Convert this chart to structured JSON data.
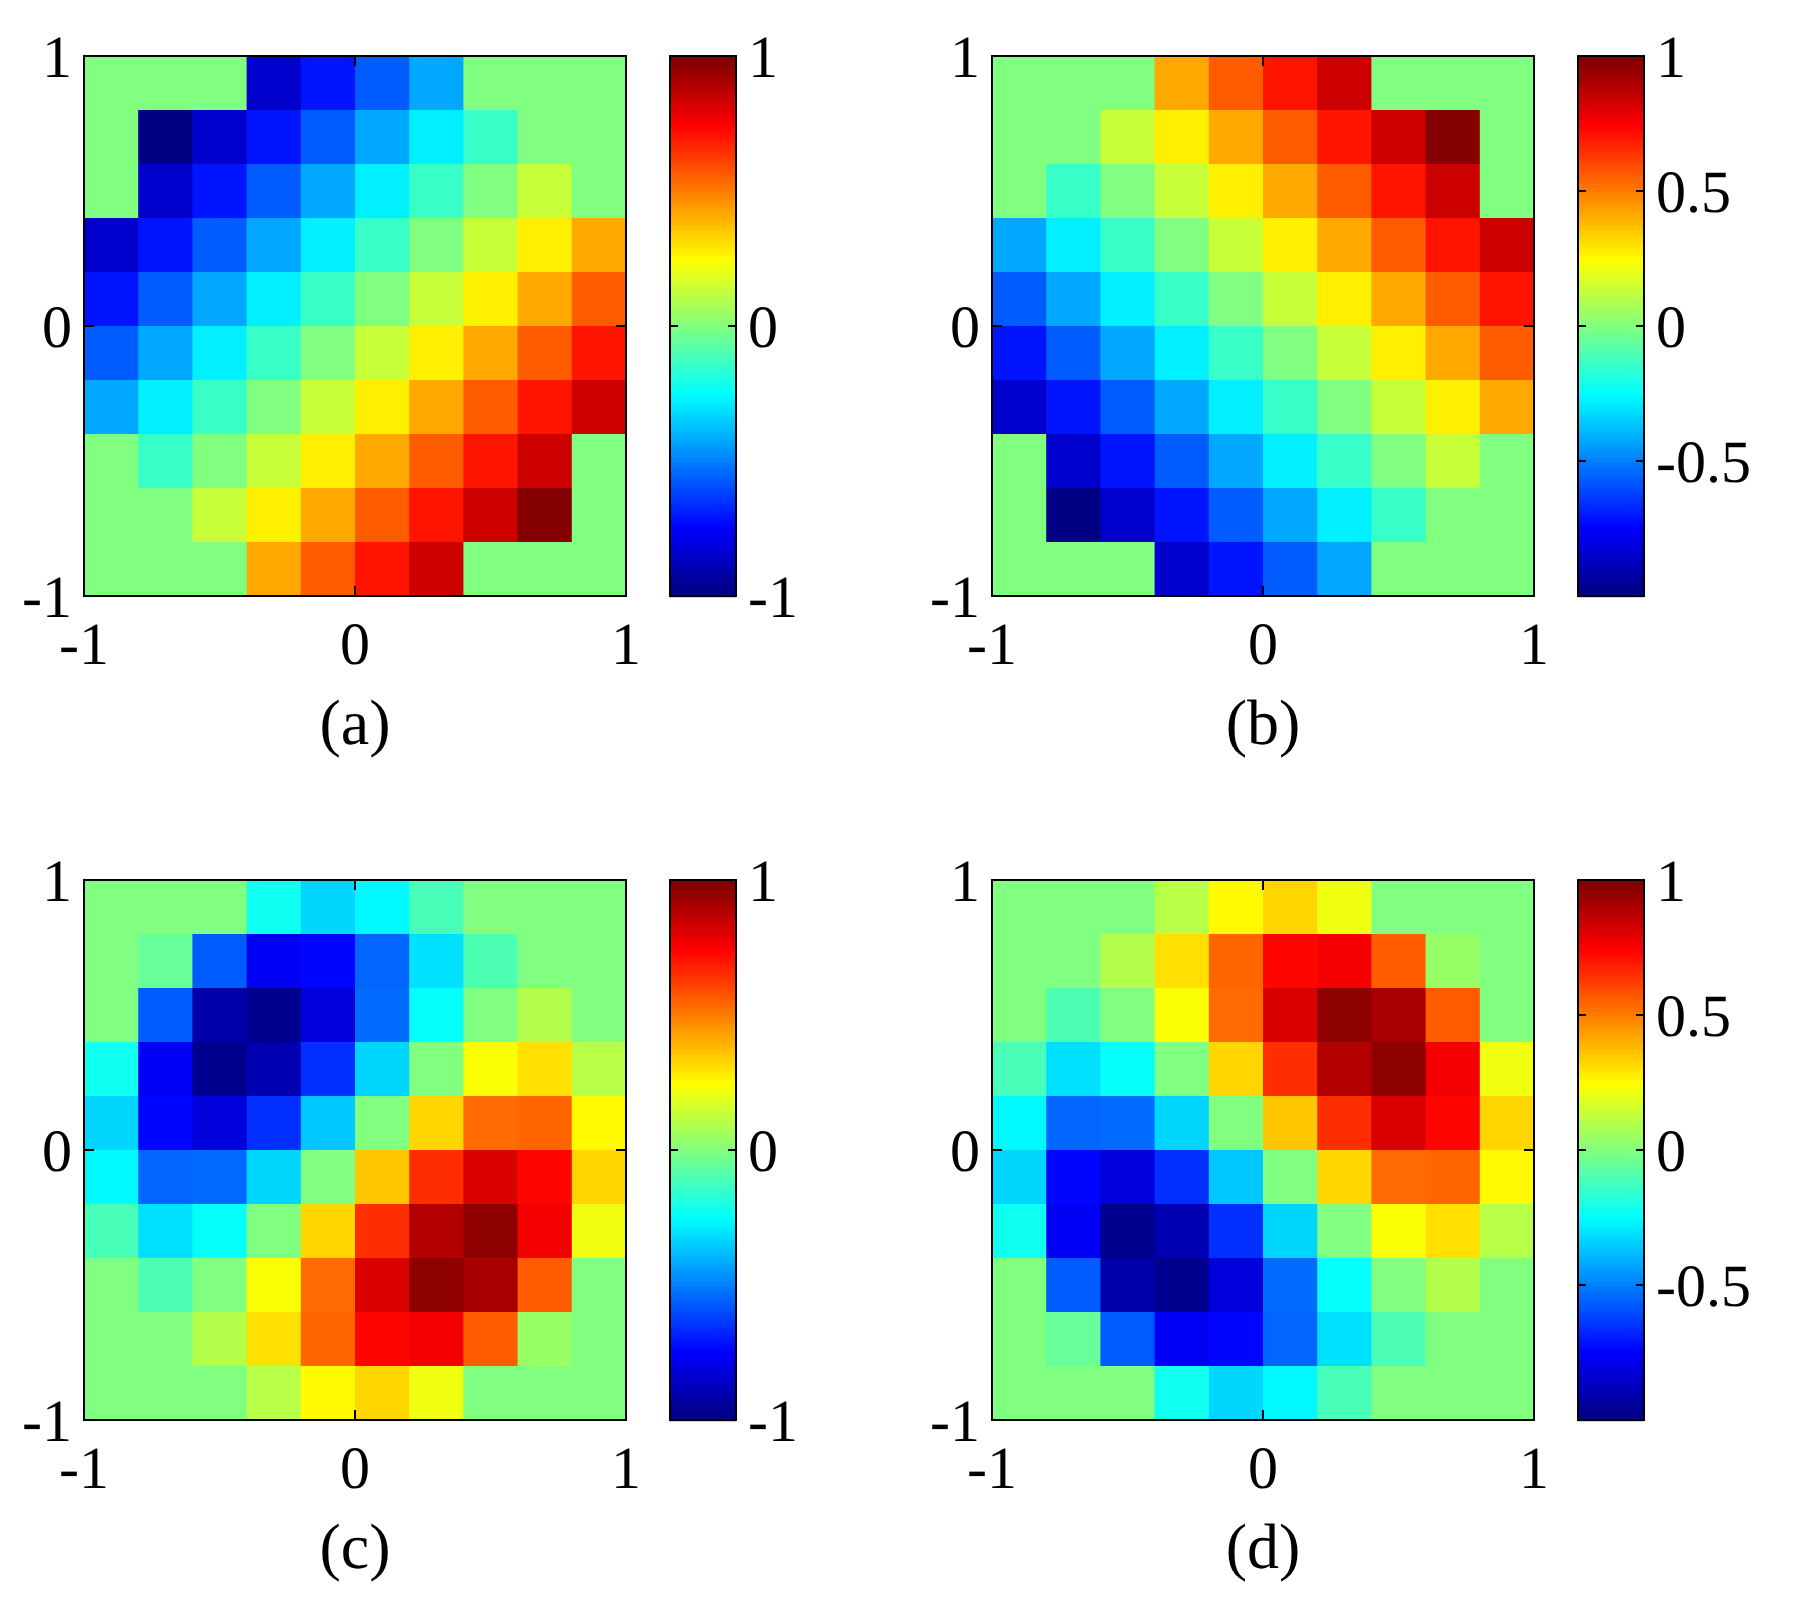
{
  "chart_data": [
    {
      "type": "heatmap",
      "xlabel": "(a)",
      "xlim": [
        -1,
        1
      ],
      "ylim": [
        -1,
        1
      ],
      "xticks": [
        -1,
        0,
        1
      ],
      "yticks": [
        -1,
        0,
        1
      ],
      "clim": [
        -1,
        1
      ],
      "cticks": [
        -1,
        0,
        1
      ],
      "cells": [
        [
          0,
          0,
          0,
          -0.85,
          -0.71,
          -0.57,
          -0.42,
          0,
          0,
          0
        ],
        [
          0,
          -0.99,
          -0.85,
          -0.71,
          -0.57,
          -0.42,
          -0.28,
          -0.14,
          0,
          0
        ],
        [
          0,
          -0.85,
          -0.71,
          -0.57,
          -0.42,
          -0.28,
          -0.14,
          0,
          0.14,
          0
        ],
        [
          -0.85,
          -0.71,
          -0.57,
          -0.42,
          -0.28,
          -0.14,
          0,
          0.14,
          0.28,
          0.42
        ],
        [
          -0.71,
          -0.57,
          -0.42,
          -0.28,
          -0.14,
          0,
          0.14,
          0.28,
          0.42,
          0.57
        ],
        [
          -0.57,
          -0.42,
          -0.28,
          -0.14,
          0,
          0.14,
          0.28,
          0.42,
          0.57,
          0.71
        ],
        [
          -0.42,
          -0.28,
          -0.14,
          0,
          0.14,
          0.28,
          0.42,
          0.57,
          0.71,
          0.85
        ],
        [
          0,
          -0.14,
          0,
          0.14,
          0.28,
          0.42,
          0.57,
          0.71,
          0.85,
          0
        ],
        [
          0,
          0,
          0.14,
          0.28,
          0.42,
          0.57,
          0.71,
          0.85,
          0.99,
          0
        ],
        [
          0,
          0,
          0,
          0.42,
          0.57,
          0.71,
          0.85,
          0,
          0,
          0
        ]
      ]
    },
    {
      "type": "heatmap",
      "xlabel": "(b)",
      "xlim": [
        -1,
        1
      ],
      "ylim": [
        -1,
        1
      ],
      "xticks": [
        -1,
        0,
        1
      ],
      "yticks": [
        -1,
        0,
        1
      ],
      "clim": [
        -1,
        1
      ],
      "cticks": [
        -0.5,
        0,
        0.5,
        1
      ],
      "cells": [
        [
          0,
          0,
          0,
          0.42,
          0.57,
          0.71,
          0.85,
          0,
          0,
          0
        ],
        [
          0,
          0,
          0.14,
          0.28,
          0.42,
          0.57,
          0.71,
          0.85,
          0.99,
          0
        ],
        [
          0,
          -0.14,
          0,
          0.14,
          0.28,
          0.42,
          0.57,
          0.71,
          0.85,
          0
        ],
        [
          -0.42,
          -0.28,
          -0.14,
          0,
          0.14,
          0.28,
          0.42,
          0.57,
          0.71,
          0.85
        ],
        [
          -0.57,
          -0.42,
          -0.28,
          -0.14,
          0,
          0.14,
          0.28,
          0.42,
          0.57,
          0.71
        ],
        [
          -0.71,
          -0.57,
          -0.42,
          -0.28,
          -0.14,
          0,
          0.14,
          0.28,
          0.42,
          0.57
        ],
        [
          -0.85,
          -0.71,
          -0.57,
          -0.42,
          -0.28,
          -0.14,
          0,
          0.14,
          0.28,
          0.42
        ],
        [
          0,
          -0.85,
          -0.71,
          -0.57,
          -0.42,
          -0.28,
          -0.14,
          0,
          0.14,
          0
        ],
        [
          0,
          -0.99,
          -0.85,
          -0.71,
          -0.57,
          -0.42,
          -0.28,
          -0.14,
          0,
          0
        ],
        [
          0,
          0,
          0,
          -0.85,
          -0.71,
          -0.57,
          -0.42,
          0,
          0,
          0
        ]
      ]
    },
    {
      "type": "heatmap",
      "xlabel": "(c)",
      "xlim": [
        -1,
        1
      ],
      "ylim": [
        -1,
        1
      ],
      "xticks": [
        -1,
        0,
        1
      ],
      "yticks": [
        -1,
        0,
        1
      ],
      "clim": [
        -1,
        1
      ],
      "cticks": [
        -1,
        0,
        1
      ],
      "cells": [
        [
          0,
          0,
          0,
          -0.22,
          -0.33,
          -0.26,
          -0.11,
          0,
          0,
          0
        ],
        [
          0,
          -0.05,
          -0.57,
          -0.77,
          -0.74,
          -0.55,
          -0.31,
          -0.1,
          0,
          0
        ],
        [
          0,
          -0.57,
          -0.92,
          -0.97,
          -0.82,
          -0.54,
          -0.24,
          0,
          0.1,
          0
        ],
        [
          -0.22,
          -0.77,
          -0.97,
          -0.9,
          -0.66,
          -0.33,
          0,
          0.24,
          0.31,
          0.11
        ],
        [
          -0.33,
          -0.74,
          -0.82,
          -0.66,
          -0.36,
          0,
          0.33,
          0.54,
          0.55,
          0.26
        ],
        [
          -0.26,
          -0.55,
          -0.54,
          -0.33,
          0,
          0.36,
          0.66,
          0.82,
          0.74,
          0.33
        ],
        [
          -0.11,
          -0.31,
          -0.24,
          0,
          0.33,
          0.66,
          0.9,
          0.97,
          0.77,
          0.22
        ],
        [
          0,
          -0.1,
          0,
          0.24,
          0.54,
          0.82,
          0.97,
          0.92,
          0.57,
          0
        ],
        [
          0,
          0,
          0.1,
          0.31,
          0.55,
          0.74,
          0.77,
          0.57,
          0.05,
          0
        ],
        [
          0,
          0,
          0,
          0.11,
          0.26,
          0.33,
          0.22,
          0,
          0,
          0
        ]
      ]
    },
    {
      "type": "heatmap",
      "xlabel": "(d)",
      "xlim": [
        -1,
        1
      ],
      "ylim": [
        -1,
        1
      ],
      "xticks": [
        -1,
        0,
        1
      ],
      "yticks": [
        -1,
        0,
        1
      ],
      "clim": [
        -1,
        1
      ],
      "cticks": [
        -0.5,
        0,
        0.5,
        1
      ],
      "cells": [
        [
          0,
          0,
          0,
          0.11,
          0.26,
          0.33,
          0.22,
          0,
          0,
          0
        ],
        [
          0,
          0,
          0.1,
          0.31,
          0.55,
          0.74,
          0.77,
          0.57,
          0.05,
          0
        ],
        [
          0,
          -0.1,
          0,
          0.24,
          0.54,
          0.82,
          0.97,
          0.92,
          0.57,
          0
        ],
        [
          -0.11,
          -0.31,
          -0.24,
          0,
          0.33,
          0.66,
          0.9,
          0.97,
          0.77,
          0.22
        ],
        [
          -0.26,
          -0.55,
          -0.54,
          -0.33,
          0,
          0.36,
          0.66,
          0.82,
          0.74,
          0.33
        ],
        [
          -0.33,
          -0.74,
          -0.82,
          -0.66,
          -0.36,
          0,
          0.33,
          0.54,
          0.55,
          0.26
        ],
        [
          -0.22,
          -0.77,
          -0.97,
          -0.9,
          -0.66,
          -0.33,
          0,
          0.24,
          0.31,
          0.11
        ],
        [
          0,
          -0.57,
          -0.92,
          -0.97,
          -0.82,
          -0.54,
          -0.24,
          0,
          0.1,
          0
        ],
        [
          0,
          -0.05,
          -0.57,
          -0.77,
          -0.74,
          -0.55,
          -0.31,
          -0.1,
          0,
          0
        ],
        [
          0,
          0,
          0,
          -0.22,
          -0.33,
          -0.26,
          -0.11,
          0,
          0,
          0
        ]
      ]
    }
  ]
}
